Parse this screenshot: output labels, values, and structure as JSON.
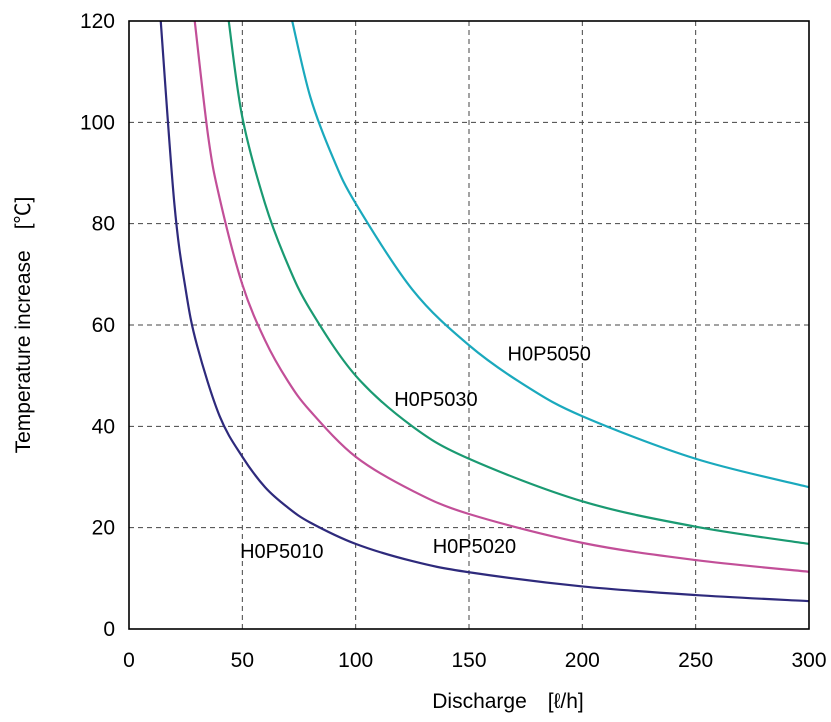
{
  "chart_data": {
    "type": "line",
    "title": "",
    "xlabel": "Discharge　[ℓ/h]",
    "ylabel": "Temperature increase　[℃]",
    "xlim": [
      0,
      300
    ],
    "ylim": [
      0,
      120
    ],
    "xticks": [
      0,
      50,
      100,
      150,
      200,
      250,
      300
    ],
    "yticks": [
      0,
      20,
      40,
      60,
      80,
      100,
      120
    ],
    "grid": true,
    "legend": "none",
    "series": [
      {
        "name": "H0P5010",
        "color": "#2e2a7c",
        "x": [
          14,
          20,
          25,
          30,
          40,
          50,
          60,
          70,
          80,
          100,
          125,
          150,
          200,
          250,
          300
        ],
        "y": [
          120,
          84,
          67,
          56,
          42,
          34,
          28,
          24,
          21,
          16.8,
          13.4,
          11.2,
          8.4,
          6.7,
          5.5
        ]
      },
      {
        "name": "H0P5020",
        "color": "#c24f98",
        "x": [
          29,
          35,
          40,
          50,
          60,
          70,
          80,
          100,
          125,
          150,
          200,
          250,
          300
        ],
        "y": [
          120,
          97,
          85,
          68,
          57,
          49,
          43,
          34,
          27.3,
          22.7,
          17,
          13.6,
          11.3
        ]
      },
      {
        "name": "H0P5030",
        "color": "#1a9a72",
        "x": [
          44,
          50,
          60,
          70,
          80,
          100,
          125,
          150,
          200,
          250,
          300
        ],
        "y": [
          120,
          101,
          84,
          72,
          63,
          50,
          40,
          33.6,
          25.2,
          20.2,
          16.8
        ]
      },
      {
        "name": "H0P5050",
        "color": "#1aa9bd",
        "x": [
          72,
          80,
          90,
          100,
          125,
          150,
          175,
          200,
          250,
          300
        ],
        "y": [
          120,
          105,
          93,
          84,
          67,
          56,
          48,
          42,
          33.6,
          28
        ]
      }
    ],
    "annotations": [
      {
        "text": "H0P5050",
        "x": 167,
        "y": 53
      },
      {
        "text": "H0P5030",
        "x": 117,
        "y": 44
      },
      {
        "text": "H0P5020",
        "x": 134,
        "y": 15
      },
      {
        "text": "H0P5010",
        "x": 49,
        "y": 14
      }
    ]
  }
}
